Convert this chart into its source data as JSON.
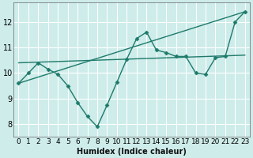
{
  "xlabel": "Humidex (Indice chaleur)",
  "background_color": "#cdecea",
  "grid_color": "#ffffff",
  "line_color": "#1e7a6a",
  "xlim": [
    -0.5,
    23.5
  ],
  "ylim": [
    7.5,
    12.75
  ],
  "xticks": [
    0,
    1,
    2,
    3,
    4,
    5,
    6,
    7,
    8,
    9,
    10,
    11,
    12,
    13,
    14,
    15,
    16,
    17,
    18,
    19,
    20,
    21,
    22,
    23
  ],
  "yticks": [
    8,
    9,
    10,
    11,
    12
  ],
  "line1_x": [
    0,
    1,
    2,
    3,
    4,
    5,
    6,
    7,
    8,
    9,
    10,
    11,
    12,
    13,
    14,
    15,
    16,
    17,
    18,
    19,
    20,
    21,
    22,
    23
  ],
  "line1_y": [
    9.6,
    10.0,
    10.4,
    10.15,
    9.95,
    9.5,
    8.85,
    8.3,
    7.9,
    8.75,
    9.65,
    10.55,
    11.35,
    11.6,
    10.9,
    10.8,
    10.65,
    10.65,
    10.0,
    9.95,
    10.6,
    10.65,
    12.0,
    12.4
  ],
  "line2_x": [
    0,
    23
  ],
  "line2_y": [
    10.4,
    10.7
  ],
  "line3_x": [
    0,
    23
  ],
  "line3_y": [
    9.6,
    12.4
  ],
  "marker": "D",
  "markersize": 2.5,
  "linewidth": 1.0,
  "xlabel_fontsize": 7,
  "tick_fontsize": 6.5
}
